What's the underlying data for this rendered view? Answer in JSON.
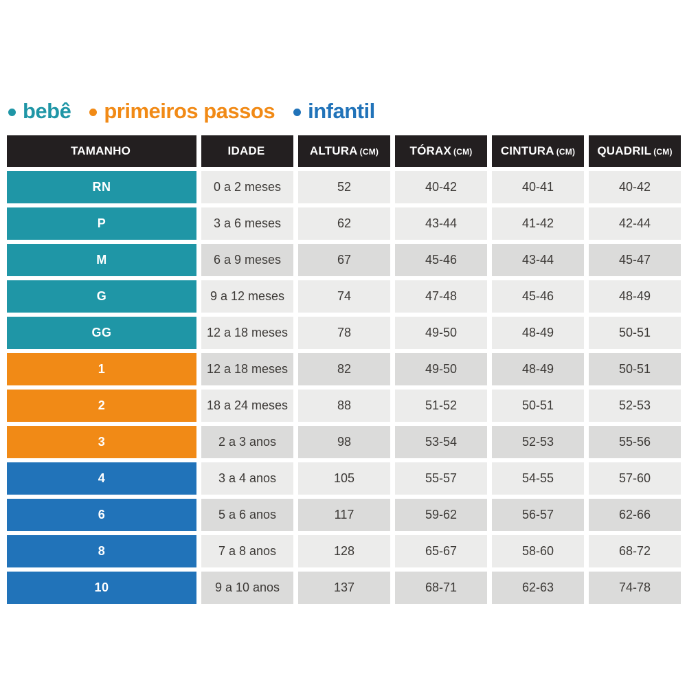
{
  "legend": {
    "items": [
      {
        "label": "bebê",
        "color": "#1F96A6"
      },
      {
        "label": "primeiros passos",
        "color": "#F18A16"
      },
      {
        "label": "infantil",
        "color": "#2173B9"
      }
    ]
  },
  "table_style": {
    "header_bg": "#231F20",
    "header_text": "#FFFFFF",
    "cell_light": "#ECECEB",
    "cell_dark": "#DBDBDA",
    "cell_text": "#3C3936",
    "group_colors": {
      "bebe": "#1F96A6",
      "primeiros_passos": "#F18A16",
      "infantil": "#2173B9"
    }
  },
  "chart_data": {
    "type": "table",
    "legend_position": "top",
    "columns": [
      {
        "label": "TAMANHO",
        "unit": ""
      },
      {
        "label": "IDADE",
        "unit": ""
      },
      {
        "label": "ALTURA",
        "unit": "(CM)"
      },
      {
        "label": "TÓRAX",
        "unit": "(CM)"
      },
      {
        "label": "CINTURA",
        "unit": "(CM)"
      },
      {
        "label": "QUADRIL",
        "unit": "(CM)"
      }
    ],
    "rows": [
      {
        "size": "RN",
        "group": "bebe",
        "age": "0 a 2 meses",
        "height": "52",
        "chest": "40-42",
        "waist": "40-41",
        "hip": "40-42",
        "shaded": false
      },
      {
        "size": "P",
        "group": "bebe",
        "age": "3 a 6 meses",
        "height": "62",
        "chest": "43-44",
        "waist": "41-42",
        "hip": "42-44",
        "shaded": false
      },
      {
        "size": "M",
        "group": "bebe",
        "age": "6 a 9 meses",
        "height": "67",
        "chest": "45-46",
        "waist": "43-44",
        "hip": "45-47",
        "shaded": true
      },
      {
        "size": "G",
        "group": "bebe",
        "age": "9 a 12 meses",
        "height": "74",
        "chest": "47-48",
        "waist": "45-46",
        "hip": "48-49",
        "shaded": false
      },
      {
        "size": "GG",
        "group": "bebe",
        "age": "12 a 18 meses",
        "height": "78",
        "chest": "49-50",
        "waist": "48-49",
        "hip": "50-51",
        "shaded": false
      },
      {
        "size": "1",
        "group": "primeiros_passos",
        "age": "12 a 18 meses",
        "height": "82",
        "chest": "49-50",
        "waist": "48-49",
        "hip": "50-51",
        "shaded": true
      },
      {
        "size": "2",
        "group": "primeiros_passos",
        "age": "18 a 24 meses",
        "height": "88",
        "chest": "51-52",
        "waist": "50-51",
        "hip": "52-53",
        "shaded": false
      },
      {
        "size": "3",
        "group": "primeiros_passos",
        "age": "2 a 3 anos",
        "height": "98",
        "chest": "53-54",
        "waist": "52-53",
        "hip": "55-56",
        "shaded": true
      },
      {
        "size": "4",
        "group": "infantil",
        "age": "3 a 4 anos",
        "height": "105",
        "chest": "55-57",
        "waist": "54-55",
        "hip": "57-60",
        "shaded": false
      },
      {
        "size": "6",
        "group": "infantil",
        "age": "5 a 6 anos",
        "height": "117",
        "chest": "59-62",
        "waist": "56-57",
        "hip": "62-66",
        "shaded": true
      },
      {
        "size": "8",
        "group": "infantil",
        "age": "7 a 8 anos",
        "height": "128",
        "chest": "65-67",
        "waist": "58-60",
        "hip": "68-72",
        "shaded": false
      },
      {
        "size": "10",
        "group": "infantil",
        "age": "9 a 10 anos",
        "height": "137",
        "chest": "68-71",
        "waist": "62-63",
        "hip": "74-78",
        "shaded": true
      }
    ]
  }
}
